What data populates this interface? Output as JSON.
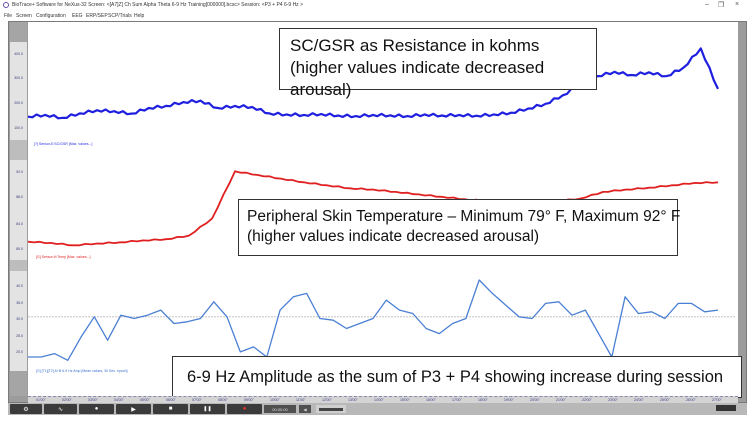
{
  "window": {
    "title": "BioTrace+ Software for NeXus-32   Screen: <[A7]Z] Ch Sum Alpha Theta 6-9 Hz Training[000000].bcsc>   Session: <P3 + P4 6-9 Hz >",
    "controls": {
      "minimize": "–",
      "restore": "❐",
      "close": "×"
    }
  },
  "menu": [
    "File",
    "Screen",
    "Configuration",
    "EEG",
    "ERP/SEP",
    "SCP/Trials",
    "Help"
  ],
  "charts": [
    {
      "id": "sc-gsr",
      "series_label": "[?] Sensor-E:SC/GSR [Max. values...]",
      "color": "#1f1fe0",
      "ticks": [
        "400.0",
        "300.0",
        "200.0",
        "100.0"
      ],
      "annotation": "SC/GSR as Resistance in kohms (higher values indicate decreased arousal)"
    },
    {
      "id": "temp",
      "series_label": "[G] Sensor-H:Temp [Max. values...]",
      "color": "#e02020",
      "ticks": [
        "92.0",
        "88.0",
        "84.0",
        "80.0"
      ],
      "annotation_line1": "Peripheral Skin Temperature – Minimum 79° F, Maximum 92° F",
      "annotation_line2": "(higher values indicate decreased arousal)"
    },
    {
      "id": "amp",
      "series_label": "[G] [T1][T2] A+B 6-9 Hz Amp [Mean values, 30 Sec. epoch]",
      "color": "#4a7fd4",
      "ticks": [
        "40.0",
        "35.0",
        "30.0",
        "25.0",
        "20.0"
      ],
      "threshold": 30,
      "annotation": "6-9 Hz Amplitude as the sum of P3 + P4 showing increase during session"
    }
  ],
  "chart_data": [
    {
      "type": "line",
      "title": "SC/GSR as Resistance in kohms",
      "ylabel": "kohms",
      "ylim": [
        0,
        460
      ],
      "x": [
        0,
        1,
        2,
        3,
        4,
        5,
        6,
        7,
        8,
        9,
        10,
        11,
        12,
        13,
        14,
        15,
        16,
        17,
        18,
        19,
        20,
        21,
        22,
        23,
        24,
        25,
        26,
        27,
        28,
        29,
        30,
        31,
        32,
        33,
        34,
        35,
        36,
        37,
        38,
        39,
        40
      ],
      "series": [
        {
          "name": "SC/GSR",
          "values": [
            110,
            118,
            104,
            125,
            140,
            135,
            124,
            150,
            160,
            178,
            185,
            150,
            160,
            155,
            125,
            120,
            118,
            122,
            115,
            112,
            118,
            116,
            112,
            120,
            115,
            118,
            114,
            120,
            128,
            148,
            170,
            210,
            260,
            300,
            320,
            305,
            318,
            300,
            340,
            430,
            240
          ]
        }
      ]
    },
    {
      "type": "line",
      "title": "Peripheral Skin Temperature",
      "ylabel": "°F",
      "ylim": [
        78,
        94
      ],
      "x": [
        0,
        1,
        2,
        3,
        4,
        5,
        6,
        7,
        8,
        9,
        10,
        11,
        12,
        13,
        14,
        15,
        16,
        17,
        18,
        19,
        20,
        21,
        22,
        23,
        24,
        25,
        26,
        27,
        28,
        29,
        30
      ],
      "series": [
        {
          "name": "Skin Temp",
          "values": [
            80.2,
            80.0,
            79.6,
            79.9,
            80.1,
            80.4,
            80.6,
            81.2,
            84.0,
            91.8,
            91.2,
            90.6,
            90.0,
            89.5,
            89.0,
            88.8,
            88.4,
            88.0,
            87.6,
            87.2,
            86.9,
            86.7,
            86.6,
            86.9,
            87.3,
            88.4,
            88.8,
            89.1,
            89.5,
            89.9,
            90.0
          ]
        }
      ]
    },
    {
      "type": "line",
      "title": "6-9 Hz Amplitude (P3 + P4)",
      "ylabel": "",
      "ylim": [
        15,
        44
      ],
      "x": [
        0,
        1,
        2,
        3,
        4,
        5,
        6,
        7,
        8,
        9,
        10,
        11,
        12,
        13,
        14,
        15,
        16,
        17,
        18,
        19,
        20,
        21,
        22,
        23,
        24,
        25,
        26,
        27,
        28,
        29,
        30,
        31,
        32,
        33,
        34,
        35,
        36,
        37,
        38,
        39,
        40,
        41,
        42,
        43,
        44,
        45,
        46,
        47,
        48,
        49,
        50,
        51,
        52
      ],
      "series": [
        {
          "name": "6-9 Hz Amp",
          "values": [
            18,
            18,
            19,
            17,
            24,
            30,
            23,
            30.5,
            29.5,
            30.5,
            32,
            28,
            28.5,
            29.5,
            34.5,
            30,
            19.5,
            21,
            18,
            32,
            36,
            37,
            29.5,
            29,
            26.5,
            28,
            29.5,
            35,
            32,
            31,
            26.5,
            25,
            28,
            29.5,
            41,
            37,
            33.5,
            30,
            29.5,
            34,
            34.5,
            30.5,
            32,
            25,
            18,
            36,
            31,
            31.5,
            29.5,
            34,
            34,
            31.5,
            32
          ]
        }
      ],
      "reference_line": 30
    }
  ],
  "xaxis": {
    "labels": [
      "01'00''",
      "02'00''",
      "03'00''",
      "04'00''",
      "05'00''",
      "06'00''",
      "07'00''",
      "08'00''",
      "09'00''",
      "10'00''",
      "11'00''",
      "12'00''",
      "13'00''",
      "14'00''",
      "15'00''",
      "16'00''",
      "17'00''",
      "18'00''",
      "19'00''",
      "20'00''",
      "21'00''",
      "22'00''",
      "23'00''",
      "24'00''",
      "25'00''",
      "26'00''",
      "27'00''"
    ]
  },
  "toolbar": {
    "buttons": [
      {
        "name": "options-button",
        "glyph": "⚙"
      },
      {
        "name": "signal-button",
        "glyph": "∿"
      },
      {
        "name": "marker-button",
        "glyph": "●"
      },
      {
        "name": "play-button",
        "glyph": "▶"
      },
      {
        "name": "stop-button",
        "glyph": "■"
      },
      {
        "name": "pause-button",
        "glyph": "❚❚"
      },
      {
        "name": "record-button",
        "glyph": "●"
      }
    ],
    "timer": "00:00:00",
    "volume_glyph": "◀"
  }
}
